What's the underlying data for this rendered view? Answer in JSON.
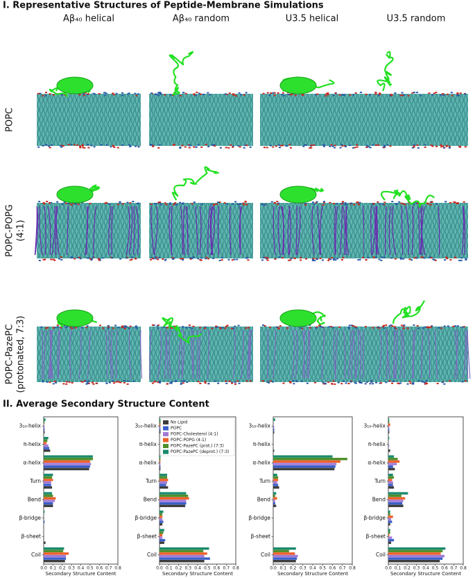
{
  "section_1_title": "I. Representative Structures of Peptide-Membrane Simulations",
  "column_headers": [
    "Aβ₄₀  helical",
    "Aβ₄₀  random",
    "U3.5 helical",
    "U3.5 random"
  ],
  "row_labels": [
    [
      "POPC"
    ],
    [
      "POPC-POPG",
      "(4:1)"
    ],
    [
      "POPC-PazePC",
      "(protonated, 7:3)"
    ]
  ],
  "section_2_title": "II. Average Secondary Structure Content",
  "chart_data": [
    {
      "type": "bar",
      "orientation": "horizontal",
      "categories": [
        "3₁₀-helix",
        "π-helix",
        "α-helix",
        "Turn",
        "Bend",
        "β-bridge",
        "β-sheet",
        "Coil"
      ],
      "series": [
        {
          "color": "#3d3d3d",
          "values": [
            0.01,
            0.07,
            0.49,
            0.09,
            0.1,
            0.0,
            0.02,
            0.23
          ]
        },
        {
          "color": "#3a5fc8",
          "values": [
            0.01,
            0.06,
            0.5,
            0.08,
            0.1,
            0.01,
            0.0,
            0.24
          ]
        },
        {
          "color": "#a27ad6",
          "values": [
            0.01,
            0.05,
            0.51,
            0.08,
            0.12,
            0.0,
            0.0,
            0.24
          ]
        },
        {
          "color": "#f0602a",
          "values": [
            0.0,
            0.03,
            0.5,
            0.1,
            0.13,
            0.0,
            0.0,
            0.27
          ]
        },
        {
          "color": "#4f8f2c",
          "values": [
            0.01,
            0.04,
            0.53,
            0.09,
            0.1,
            0.0,
            0.0,
            0.21
          ]
        },
        {
          "color": "#198a6c",
          "values": [
            0.02,
            0.05,
            0.53,
            0.1,
            0.09,
            0.01,
            0.0,
            0.22
          ]
        }
      ],
      "xlim": [
        0,
        0.8
      ],
      "xticks": [
        {
          "value": 0,
          "label": "0.0"
        },
        {
          "value": 0.1,
          "label": "0.1"
        },
        {
          "value": 0.2,
          "label": "0.2"
        },
        {
          "value": 0.3,
          "label": "0.3"
        },
        {
          "value": 0.4,
          "label": "0.4"
        },
        {
          "value": 0.5,
          "label": "0.5"
        },
        {
          "value": 0.6,
          "label": "0.6"
        },
        {
          "value": 0.7,
          "label": "0.7"
        },
        {
          "value": 0.8,
          "label": "0.8"
        }
      ],
      "xlabel": "Secondary Structure Content"
    },
    {
      "type": "bar",
      "orientation": "horizontal",
      "categories": [
        "3₁₀-helix",
        "π-helix",
        "α-helix",
        "Turn",
        "Bend",
        "β-bridge",
        "β-sheet",
        "Coil"
      ],
      "series": [
        {
          "name": "No Lipid",
          "color": "#3d3d3d",
          "values": [
            0.01,
            0.0,
            0.01,
            0.09,
            0.27,
            0.03,
            0.05,
            0.47
          ]
        },
        {
          "name": "POPC",
          "color": "#3a5fc8",
          "values": [
            0.01,
            0.0,
            0.01,
            0.07,
            0.28,
            0.04,
            0.06,
            0.53
          ]
        },
        {
          "name": "POPC-Cholesterol (4:1)",
          "color": "#a27ad6",
          "values": [
            0.01,
            0.0,
            0.01,
            0.08,
            0.28,
            0.03,
            0.03,
            0.47
          ]
        },
        {
          "name": "POPC-POPG (4:1)",
          "color": "#f0602a",
          "values": [
            0.01,
            0.0,
            0.01,
            0.09,
            0.31,
            0.03,
            0.03,
            0.5
          ]
        },
        {
          "name": "POPC-PazePC (prot.) (7:3)",
          "color": "#4f8f2c",
          "values": [
            0.01,
            0.0,
            0.01,
            0.08,
            0.3,
            0.03,
            0.04,
            0.46
          ]
        },
        {
          "name": "POPC-PazePC (deprot.) (7:3)",
          "color": "#198a6c",
          "values": [
            0.01,
            0.0,
            0.01,
            0.08,
            0.28,
            0.04,
            0.05,
            0.52
          ]
        }
      ],
      "legend": "upper right",
      "xlim": [
        0,
        0.8
      ],
      "xticks": [
        {
          "value": 0,
          "label": "0.0"
        },
        {
          "value": 0.1,
          "label": "0.1"
        },
        {
          "value": 0.2,
          "label": "0.2"
        },
        {
          "value": 0.3,
          "label": "0.3"
        },
        {
          "value": 0.4,
          "label": "0.4"
        },
        {
          "value": 0.5,
          "label": "0.5"
        },
        {
          "value": 0.6,
          "label": "0.6"
        },
        {
          "value": 0.7,
          "label": "0.7"
        },
        {
          "value": 0.8,
          "label": "0.8"
        }
      ],
      "xlabel": "Secondary Structure Content"
    },
    {
      "type": "bar",
      "orientation": "horizontal",
      "categories": [
        "3₁₀-helix",
        "π-helix",
        "α-helix",
        "Turn",
        "Bend",
        "β-bridge",
        "β-sheet",
        "Coil"
      ],
      "series": [
        {
          "color": "#3d3d3d",
          "values": [
            0.01,
            0.01,
            0.62,
            0.06,
            0.03,
            0.0,
            0.0,
            0.23
          ]
        },
        {
          "color": "#3a5fc8",
          "values": [
            0.01,
            0.0,
            0.63,
            0.05,
            0.02,
            0.0,
            0.0,
            0.24
          ]
        },
        {
          "color": "#a27ad6",
          "values": [
            0.01,
            0.0,
            0.64,
            0.04,
            0.02,
            0.0,
            0.0,
            0.25
          ]
        },
        {
          "color": "#f0602a",
          "values": [
            0.0,
            0.0,
            0.68,
            0.05,
            0.04,
            0.0,
            0.0,
            0.22
          ]
        },
        {
          "color": "#4f8f2c",
          "values": [
            0.0,
            0.0,
            0.75,
            0.05,
            0.02,
            0.0,
            0.0,
            0.16
          ]
        },
        {
          "color": "#198a6c",
          "values": [
            0.02,
            0.0,
            0.6,
            0.04,
            0.03,
            0.0,
            0.0,
            0.23
          ]
        }
      ],
      "xlim": [
        0,
        0.8
      ],
      "xticks": [
        {
          "value": 0,
          "label": "0.0"
        },
        {
          "value": 0.1,
          "label": "0.1"
        },
        {
          "value": 0.2,
          "label": "0.2"
        },
        {
          "value": 0.3,
          "label": "0.3"
        },
        {
          "value": 0.4,
          "label": "0.4"
        },
        {
          "value": 0.5,
          "label": "0.5"
        },
        {
          "value": 0.6,
          "label": "0.6"
        },
        {
          "value": 0.7,
          "label": "0.7"
        },
        {
          "value": 0.8,
          "label": "0.8"
        }
      ],
      "xlabel": "Secondary Structure Content"
    },
    {
      "type": "bar",
      "orientation": "horizontal",
      "categories": [
        "3₁₀-helix",
        "π-helix",
        "α-helix",
        "Turn",
        "Bend",
        "β-bridge",
        "β-sheet",
        "Coil"
      ],
      "series": [
        {
          "color": "#3d3d3d",
          "values": [
            0.01,
            0.02,
            0.07,
            0.06,
            0.16,
            0.02,
            0.03,
            0.55
          ]
        },
        {
          "color": "#3a5fc8",
          "values": [
            0.01,
            0.0,
            0.05,
            0.05,
            0.15,
            0.04,
            0.06,
            0.58
          ]
        },
        {
          "color": "#a27ad6",
          "values": [
            0.01,
            0.01,
            0.09,
            0.05,
            0.16,
            0.03,
            0.04,
            0.6
          ]
        },
        {
          "color": "#f0602a",
          "values": [
            0.02,
            0.0,
            0.12,
            0.04,
            0.18,
            0.05,
            0.01,
            0.56
          ]
        },
        {
          "color": "#4f8f2c",
          "values": [
            0.01,
            0.0,
            0.1,
            0.06,
            0.14,
            0.02,
            0.02,
            0.58
          ]
        },
        {
          "color": "#198a6c",
          "values": [
            0.01,
            0.01,
            0.06,
            0.05,
            0.21,
            0.02,
            0.02,
            0.61
          ]
        }
      ],
      "xlim": [
        0,
        0.8
      ],
      "xticks": [
        {
          "value": 0,
          "label": "0.0"
        },
        {
          "value": 0.1,
          "label": "0.1"
        },
        {
          "value": 0.2,
          "label": "0.2"
        },
        {
          "value": 0.3,
          "label": "0.3"
        },
        {
          "value": 0.4,
          "label": "0.4"
        },
        {
          "value": 0.5,
          "label": "0.5"
        },
        {
          "value": 0.6,
          "label": "0.6"
        },
        {
          "value": 0.7,
          "label": "0.7"
        },
        {
          "value": 0.8,
          "label": "0.8"
        }
      ],
      "xlabel": "Secondary Structure Content"
    }
  ]
}
